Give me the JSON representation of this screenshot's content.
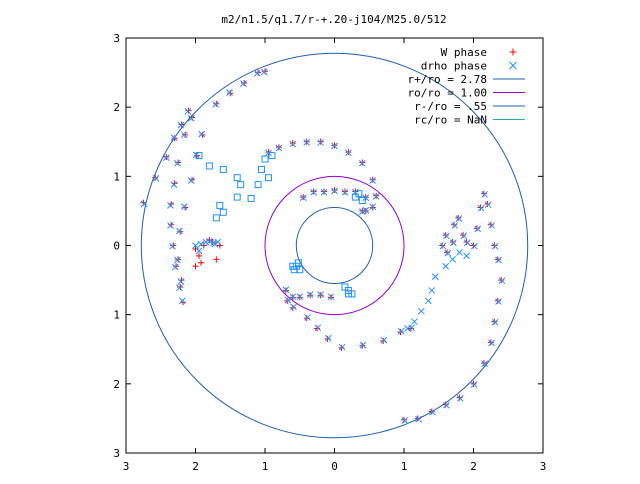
{
  "chart_data": {
    "type": "scatter",
    "title": "m2/n1.5/q1.7/r-+.20-j104/M25.0/512",
    "xlim": [
      -3,
      3
    ],
    "ylim": [
      -3,
      3
    ],
    "x_ticks": [
      -3,
      -2,
      -1,
      0,
      1,
      2,
      3
    ],
    "y_ticks": [
      -3,
      -2,
      -1,
      0,
      1,
      2,
      3
    ],
    "x_tick_labels": [
      "3",
      "2",
      "1",
      "0",
      "1",
      "2",
      "3"
    ],
    "y_tick_labels": [
      "3",
      "2",
      "1",
      "0",
      "1",
      "2",
      "3"
    ],
    "grid": false,
    "legend_position": "top-right",
    "series": [
      {
        "name": "W phase",
        "kind": "points",
        "marker": "plus",
        "color": "#ff0000",
        "points": [
          [
            -2.75,
            0.62
          ],
          [
            -2.58,
            0.98
          ],
          [
            -2.42,
            1.28
          ],
          [
            -2.3,
            1.55
          ],
          [
            -2.2,
            1.75
          ],
          [
            -2.1,
            1.95
          ],
          [
            -2.05,
            1.85
          ],
          [
            -2.15,
            1.6
          ],
          [
            -2.25,
            1.2
          ],
          [
            -2.3,
            0.9
          ],
          [
            -2.35,
            0.6
          ],
          [
            -2.35,
            0.3
          ],
          [
            -2.32,
            0.0
          ],
          [
            -2.28,
            -0.3
          ],
          [
            -2.22,
            -0.6
          ],
          [
            -2.18,
            -0.82
          ],
          [
            -2.2,
            -0.5
          ],
          [
            -2.25,
            -0.2
          ],
          [
            -2.22,
            0.2
          ],
          [
            -2.15,
            0.55
          ],
          [
            -2.05,
            0.95
          ],
          [
            -1.98,
            1.3
          ],
          [
            -1.9,
            1.6
          ],
          [
            -1.7,
            2.05
          ],
          [
            -1.5,
            2.2
          ],
          [
            -1.3,
            2.35
          ],
          [
            -1.1,
            2.5
          ],
          [
            -1.0,
            2.52
          ],
          [
            -2.0,
            -0.05
          ],
          [
            -1.95,
            -0.15
          ],
          [
            -1.92,
            -0.25
          ],
          [
            -1.88,
            0.0
          ],
          [
            -1.8,
            0.08
          ],
          [
            -1.75,
            0.05
          ],
          [
            -1.7,
            -0.2
          ],
          [
            -1.65,
            0.0
          ],
          [
            -2.0,
            -0.3
          ],
          [
            -0.95,
            1.35
          ],
          [
            -0.8,
            1.42
          ],
          [
            -0.6,
            1.48
          ],
          [
            -0.4,
            1.5
          ],
          [
            -0.2,
            1.5
          ],
          [
            0.0,
            1.45
          ],
          [
            0.2,
            1.35
          ],
          [
            0.4,
            1.2
          ],
          [
            0.55,
            0.95
          ],
          [
            0.6,
            0.72
          ],
          [
            0.55,
            0.55
          ],
          [
            0.45,
            0.5
          ],
          [
            0.4,
            0.5
          ],
          [
            -0.45,
            0.7
          ],
          [
            -0.3,
            0.78
          ],
          [
            -0.15,
            0.78
          ],
          [
            0.0,
            0.8
          ],
          [
            0.15,
            0.78
          ],
          [
            0.3,
            0.78
          ],
          [
            0.45,
            0.7
          ],
          [
            -0.6,
            -0.75
          ],
          [
            -0.5,
            -0.75
          ],
          [
            -0.35,
            -0.72
          ],
          [
            -0.2,
            -0.72
          ],
          [
            -0.05,
            -0.75
          ],
          [
            -0.7,
            -0.65
          ],
          [
            -0.68,
            -0.8
          ],
          [
            -0.6,
            -0.9
          ],
          [
            -0.4,
            -1.05
          ],
          [
            -0.25,
            -1.2
          ],
          [
            -0.1,
            -1.35
          ],
          [
            0.1,
            -1.48
          ],
          [
            0.4,
            -1.45
          ],
          [
            0.7,
            -1.38
          ],
          [
            0.95,
            -1.25
          ],
          [
            1.1,
            -1.2
          ],
          [
            1.55,
            0.0
          ],
          [
            1.6,
            0.15
          ],
          [
            1.62,
            -0.1
          ],
          [
            1.7,
            0.05
          ],
          [
            1.72,
            0.3
          ],
          [
            1.78,
            0.4
          ],
          [
            1.85,
            0.15
          ],
          [
            1.9,
            0.05
          ],
          [
            2.0,
            0.0
          ],
          [
            2.05,
            0.25
          ],
          [
            2.1,
            0.55
          ],
          [
            2.15,
            0.75
          ],
          [
            2.2,
            0.6
          ],
          [
            2.25,
            0.3
          ],
          [
            2.3,
            0.0
          ],
          [
            2.35,
            -0.2
          ],
          [
            2.4,
            -0.5
          ],
          [
            2.35,
            -0.8
          ],
          [
            2.3,
            -1.1
          ],
          [
            2.25,
            -1.4
          ],
          [
            2.15,
            -1.7
          ],
          [
            2.0,
            -2.0
          ],
          [
            1.8,
            -2.2
          ],
          [
            1.6,
            -2.3
          ],
          [
            1.4,
            -2.4
          ],
          [
            1.2,
            -2.5
          ],
          [
            1.0,
            -2.52
          ]
        ]
      },
      {
        "name": "drho phase",
        "kind": "points",
        "marker": "cross",
        "color": "#1e90ff",
        "points": [
          [
            -2.74,
            0.6
          ],
          [
            -2.57,
            0.97
          ],
          [
            -2.42,
            1.27
          ],
          [
            -2.31,
            1.56
          ],
          [
            -2.21,
            1.74
          ],
          [
            -2.11,
            1.94
          ],
          [
            -2.06,
            1.84
          ],
          [
            -2.16,
            1.6
          ],
          [
            -2.26,
            1.19
          ],
          [
            -2.31,
            0.88
          ],
          [
            -2.36,
            0.58
          ],
          [
            -2.36,
            0.29
          ],
          [
            -2.33,
            -0.01
          ],
          [
            -2.29,
            -0.31
          ],
          [
            -2.23,
            -0.61
          ],
          [
            -2.19,
            -0.8
          ],
          [
            -2.21,
            -0.52
          ],
          [
            -2.26,
            -0.21
          ],
          [
            -2.23,
            0.21
          ],
          [
            -2.16,
            0.56
          ],
          [
            -2.06,
            0.94
          ],
          [
            -1.99,
            1.31
          ],
          [
            -1.91,
            1.61
          ],
          [
            -1.71,
            2.04
          ],
          [
            -1.51,
            2.21
          ],
          [
            -1.31,
            2.34
          ],
          [
            -1.11,
            2.49
          ],
          [
            -1.01,
            2.51
          ],
          [
            -2.0,
            0.0
          ],
          [
            -1.92,
            0.02
          ],
          [
            -1.85,
            0.05
          ],
          [
            -1.8,
            0.06
          ],
          [
            -1.74,
            0.04
          ],
          [
            -1.68,
            0.05
          ],
          [
            -1.72,
            0.02
          ],
          [
            -1.95,
            -0.08
          ],
          [
            -0.95,
            1.34
          ],
          [
            -0.8,
            1.41
          ],
          [
            -0.6,
            1.47
          ],
          [
            -0.4,
            1.49
          ],
          [
            -0.2,
            1.49
          ],
          [
            0.0,
            1.44
          ],
          [
            0.2,
            1.34
          ],
          [
            0.4,
            1.19
          ],
          [
            0.55,
            0.94
          ],
          [
            0.6,
            0.71
          ],
          [
            0.55,
            0.56
          ],
          [
            0.45,
            0.51
          ],
          [
            0.4,
            0.49
          ],
          [
            -0.45,
            0.69
          ],
          [
            -0.3,
            0.77
          ],
          [
            -0.15,
            0.77
          ],
          [
            0.0,
            0.79
          ],
          [
            0.15,
            0.77
          ],
          [
            0.3,
            0.77
          ],
          [
            0.45,
            0.69
          ],
          [
            -0.6,
            -0.74
          ],
          [
            -0.5,
            -0.74
          ],
          [
            -0.35,
            -0.71
          ],
          [
            -0.2,
            -0.71
          ],
          [
            -0.05,
            -0.74
          ],
          [
            -0.7,
            -0.64
          ],
          [
            -0.67,
            -0.79
          ],
          [
            -0.59,
            -0.89
          ],
          [
            -0.39,
            -1.04
          ],
          [
            -0.24,
            -1.19
          ],
          [
            -0.09,
            -1.34
          ],
          [
            0.11,
            -1.47
          ],
          [
            0.41,
            -1.44
          ],
          [
            0.71,
            -1.37
          ],
          [
            0.96,
            -1.24
          ],
          [
            1.11,
            -1.19
          ],
          [
            1.56,
            -0.01
          ],
          [
            1.61,
            0.14
          ],
          [
            1.63,
            -0.11
          ],
          [
            1.71,
            0.04
          ],
          [
            1.73,
            0.29
          ],
          [
            1.79,
            0.39
          ],
          [
            1.86,
            0.14
          ],
          [
            1.91,
            0.04
          ],
          [
            2.01,
            -0.01
          ],
          [
            2.06,
            0.24
          ],
          [
            2.11,
            0.54
          ],
          [
            2.16,
            0.74
          ],
          [
            2.21,
            0.59
          ],
          [
            2.26,
            0.29
          ],
          [
            2.31,
            -0.01
          ],
          [
            2.36,
            -0.21
          ],
          [
            2.41,
            -0.51
          ],
          [
            2.36,
            -0.81
          ],
          [
            2.31,
            -1.11
          ],
          [
            2.26,
            -1.41
          ],
          [
            2.16,
            -1.71
          ],
          [
            2.01,
            -2.01
          ],
          [
            1.81,
            -2.21
          ],
          [
            1.61,
            -2.31
          ],
          [
            1.41,
            -2.41
          ],
          [
            1.21,
            -2.51
          ],
          [
            1.01,
            -2.53
          ],
          [
            1.45,
            -0.45
          ],
          [
            1.4,
            -0.65
          ],
          [
            1.35,
            -0.8
          ],
          [
            1.25,
            -0.95
          ],
          [
            1.15,
            -1.1
          ],
          [
            1.05,
            -1.2
          ],
          [
            1.6,
            -0.3
          ],
          [
            1.7,
            -0.2
          ],
          [
            1.8,
            -0.1
          ],
          [
            1.9,
            -0.15
          ]
        ]
      },
      {
        "name": "drho phase",
        "kind": "points",
        "marker": "square",
        "color": "#1e90ff",
        "points": [
          [
            -1.95,
            1.3
          ],
          [
            -1.8,
            1.15
          ],
          [
            -1.6,
            1.1
          ],
          [
            -1.4,
            0.98
          ],
          [
            -1.35,
            0.88
          ],
          [
            -1.4,
            0.7
          ],
          [
            -1.2,
            0.68
          ],
          [
            -1.1,
            0.88
          ],
          [
            -1.05,
            1.1
          ],
          [
            -1.0,
            1.25
          ],
          [
            -0.9,
            1.3
          ],
          [
            -1.6,
            0.48
          ],
          [
            -1.7,
            0.4
          ],
          [
            -1.65,
            0.58
          ],
          [
            -0.95,
            0.98
          ],
          [
            -0.6,
            -0.3
          ],
          [
            -0.58,
            -0.35
          ],
          [
            -0.55,
            -0.3
          ],
          [
            -0.5,
            -0.35
          ],
          [
            -0.52,
            -0.25
          ],
          [
            0.15,
            -0.6
          ],
          [
            0.2,
            -0.65
          ],
          [
            0.2,
            -0.7
          ],
          [
            0.25,
            -0.7
          ],
          [
            0.3,
            0.7
          ],
          [
            0.35,
            0.75
          ],
          [
            0.4,
            0.65
          ]
        ]
      },
      {
        "name": "r+/ro = 2.78",
        "kind": "circle",
        "radius": 2.78,
        "color": "#1e5fb0"
      },
      {
        "name": "ro/ro = 1.00",
        "kind": "circle",
        "radius": 1.0,
        "color": "#9400d3"
      },
      {
        "name": "r-/ro = .55",
        "kind": "circle",
        "radius": 0.55,
        "color": "#1e5fb0"
      },
      {
        "name": "rc/ro = NaN",
        "kind": "circle",
        "radius": null,
        "color": "#20b2aa"
      }
    ],
    "legend": [
      {
        "label": "W phase",
        "marker": "plus",
        "color": "#ff0000"
      },
      {
        "label": "drho phase",
        "marker": "cross",
        "color": "#1e90ff"
      },
      {
        "label": "r+/ro = 2.78",
        "marker": "line",
        "color": "#1e5fb0"
      },
      {
        "label": "ro/ro = 1.00",
        "marker": "line",
        "color": "#9400d3"
      },
      {
        "label": "r-/ro = .55",
        "marker": "line",
        "color": "#1e5fb0"
      },
      {
        "label": "rc/ro = NaN",
        "marker": "line",
        "color": "#20b2aa"
      }
    ]
  }
}
